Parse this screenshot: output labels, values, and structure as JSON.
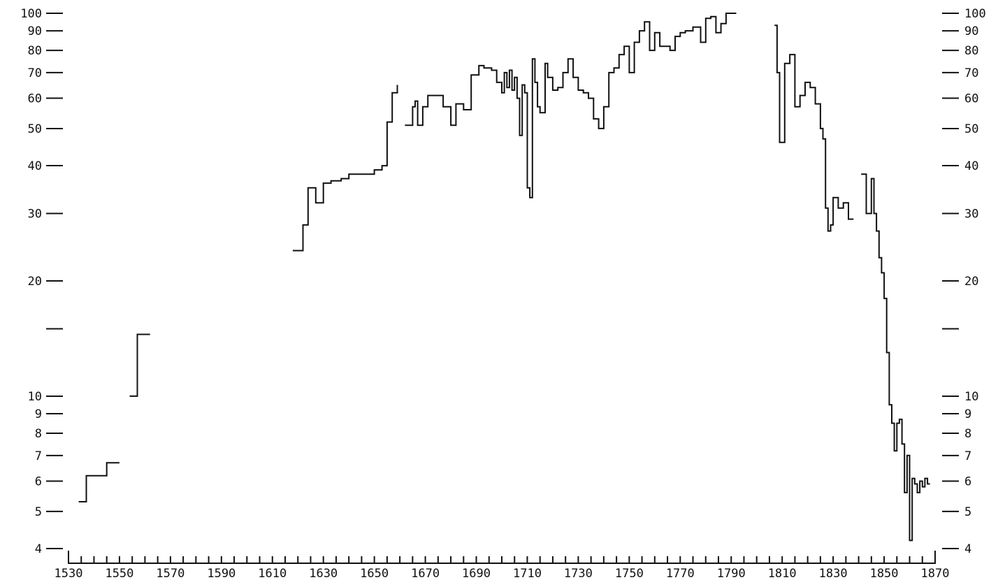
{
  "chart_data": {
    "type": "line",
    "step": true,
    "log_scale_y": true,
    "grid": false,
    "legend": "none",
    "xlim": [
      1530,
      1870
    ],
    "ylim": [
      4,
      100
    ],
    "x_ticks": [
      1530,
      1550,
      1570,
      1590,
      1610,
      1630,
      1650,
      1670,
      1690,
      1710,
      1730,
      1750,
      1770,
      1790,
      1810,
      1830,
      1850,
      1870
    ],
    "x_tick_labels": [
      "1530",
      "1550",
      "1570",
      "1590",
      "1610",
      "1630",
      "1650",
      "1670",
      "1690",
      "1710",
      "1730",
      "1750",
      "1770",
      "1790",
      "1810",
      "1830",
      "1850",
      "1870"
    ],
    "y_ticks": [
      4,
      5,
      6,
      7,
      8,
      9,
      10,
      15,
      20,
      30,
      40,
      50,
      60,
      70,
      80,
      90,
      100
    ],
    "y_tick_labels": [
      "4",
      "5",
      "6",
      "7",
      "8",
      "9",
      "10",
      "",
      "20",
      "30",
      "40",
      "50",
      "60",
      "70",
      "80",
      "90",
      "100"
    ],
    "segments": [
      {
        "x": [
          1534,
          1537,
          1537,
          1545,
          1545,
          1550
        ],
        "y": [
          5.3,
          5.3,
          6.2,
          6.2,
          6.7,
          6.7
        ]
      },
      {
        "x": [
          1554,
          1557,
          1557,
          1562
        ],
        "y": [
          10,
          10,
          14.5,
          14.5
        ]
      },
      {
        "x": [
          1618,
          1622,
          1622,
          1624,
          1624,
          1627,
          1627,
          1630,
          1630,
          1633,
          1633,
          1637,
          1637,
          1640,
          1640,
          1650,
          1650,
          1653,
          1653,
          1655,
          1655,
          1657,
          1657,
          1659,
          1659
        ],
        "y": [
          24,
          24,
          28,
          28,
          35,
          35,
          32,
          32,
          36,
          36,
          36.5,
          36.5,
          37,
          37,
          38,
          38,
          39,
          39,
          40,
          40,
          52,
          52,
          62,
          62,
          65
        ]
      },
      {
        "x": [
          1662,
          1665,
          1665,
          1666,
          1666,
          1667,
          1667,
          1669,
          1669,
          1671,
          1671,
          1677,
          1677,
          1680,
          1680,
          1682,
          1682,
          1685,
          1685,
          1688,
          1688,
          1691,
          1691,
          1693,
          1693,
          1696,
          1696,
          1698,
          1698,
          1700,
          1700,
          1701,
          1701,
          1702,
          1702,
          1703,
          1703,
          1704,
          1704,
          1705,
          1705,
          1706,
          1706,
          1707,
          1707,
          1708,
          1708,
          1709,
          1709,
          1710,
          1710,
          1711,
          1711,
          1712,
          1712,
          1713,
          1713,
          1714,
          1714,
          1715,
          1715,
          1717,
          1717,
          1718,
          1718,
          1720,
          1720,
          1722,
          1722,
          1724,
          1724,
          1726,
          1726,
          1728,
          1728,
          1730,
          1730,
          1732,
          1732,
          1734,
          1734,
          1736,
          1736,
          1738,
          1738,
          1740,
          1740,
          1742,
          1742,
          1744,
          1744,
          1746,
          1746,
          1748,
          1748,
          1750,
          1750,
          1752,
          1752,
          1754,
          1754,
          1756,
          1756,
          1758,
          1758,
          1760,
          1760,
          1762,
          1762,
          1764,
          1764,
          1766,
          1766,
          1768,
          1768,
          1770,
          1770,
          1772,
          1772,
          1775,
          1775,
          1778,
          1778,
          1780,
          1780,
          1782,
          1782,
          1784,
          1784,
          1786,
          1786,
          1788,
          1788,
          1790,
          1790,
          1792
        ],
        "y": [
          51,
          51,
          57,
          57,
          59,
          59,
          51,
          51,
          57,
          57,
          61,
          61,
          57,
          57,
          51,
          51,
          58,
          58,
          56,
          56,
          69,
          69,
          73,
          73,
          72,
          72,
          71,
          71,
          66,
          66,
          62,
          62,
          70,
          70,
          64,
          64,
          71,
          71,
          63,
          63,
          68,
          68,
          60,
          60,
          48,
          48,
          65,
          65,
          62,
          62,
          35,
          35,
          33,
          33,
          76,
          76,
          66,
          66,
          57,
          57,
          55,
          55,
          74,
          74,
          68,
          68,
          63,
          63,
          64,
          64,
          70,
          70,
          76,
          76,
          68,
          68,
          63,
          63,
          62,
          62,
          60,
          60,
          53,
          53,
          50,
          50,
          57,
          57,
          70,
          70,
          72,
          72,
          78,
          78,
          82,
          82,
          70,
          70,
          84,
          84,
          90,
          90,
          95,
          95,
          80,
          80,
          89,
          89,
          82,
          82,
          82,
          82,
          80,
          80,
          87,
          87,
          89,
          89,
          90,
          90,
          92,
          92,
          84,
          84,
          97,
          97,
          98,
          98,
          89,
          89,
          94,
          94,
          100,
          100,
          100,
          100
        ]
      },
      {
        "x": [
          1807,
          1808,
          1808,
          1809,
          1809,
          1811,
          1811,
          1813,
          1813,
          1815,
          1815,
          1817,
          1817,
          1819,
          1819,
          1821,
          1821,
          1823,
          1823,
          1825,
          1825,
          1826,
          1826,
          1827,
          1827,
          1828,
          1828,
          1829,
          1829,
          1830,
          1830,
          1832,
          1832,
          1834,
          1834,
          1836,
          1836,
          1838
        ],
        "y": [
          93,
          93,
          70,
          70,
          46,
          46,
          74,
          74,
          78,
          78,
          57,
          57,
          61,
          61,
          66,
          66,
          64,
          64,
          58,
          58,
          50,
          50,
          47,
          47,
          31,
          31,
          27,
          27,
          28,
          28,
          33,
          33,
          31,
          31,
          32,
          32,
          29,
          29
        ]
      },
      {
        "x": [
          1841,
          1843,
          1843,
          1845,
          1845,
          1846,
          1846,
          1847,
          1847,
          1848,
          1848,
          1849,
          1849,
          1850,
          1850,
          1851,
          1851,
          1852,
          1852,
          1853,
          1853,
          1854,
          1854,
          1855,
          1855,
          1856,
          1856,
          1857,
          1857,
          1858,
          1858,
          1859,
          1859,
          1860,
          1860,
          1861,
          1861,
          1862,
          1862,
          1863,
          1863,
          1864,
          1864,
          1865,
          1865,
          1866,
          1866,
          1867,
          1867,
          1868
        ],
        "y": [
          38,
          38,
          30,
          30,
          37,
          37,
          30,
          30,
          27,
          27,
          23,
          23,
          21,
          21,
          18,
          18,
          13,
          13,
          9.5,
          9.5,
          8.5,
          8.5,
          7.2,
          7.2,
          8.5,
          8.5,
          8.7,
          8.7,
          7.5,
          7.5,
          5.6,
          5.6,
          7.0,
          7.0,
          4.2,
          4.2,
          6.1,
          6.1,
          5.9,
          5.9,
          5.6,
          5.6,
          6.0,
          6.0,
          5.8,
          5.8,
          6.1,
          6.1,
          5.9,
          5.9
        ]
      }
    ]
  }
}
